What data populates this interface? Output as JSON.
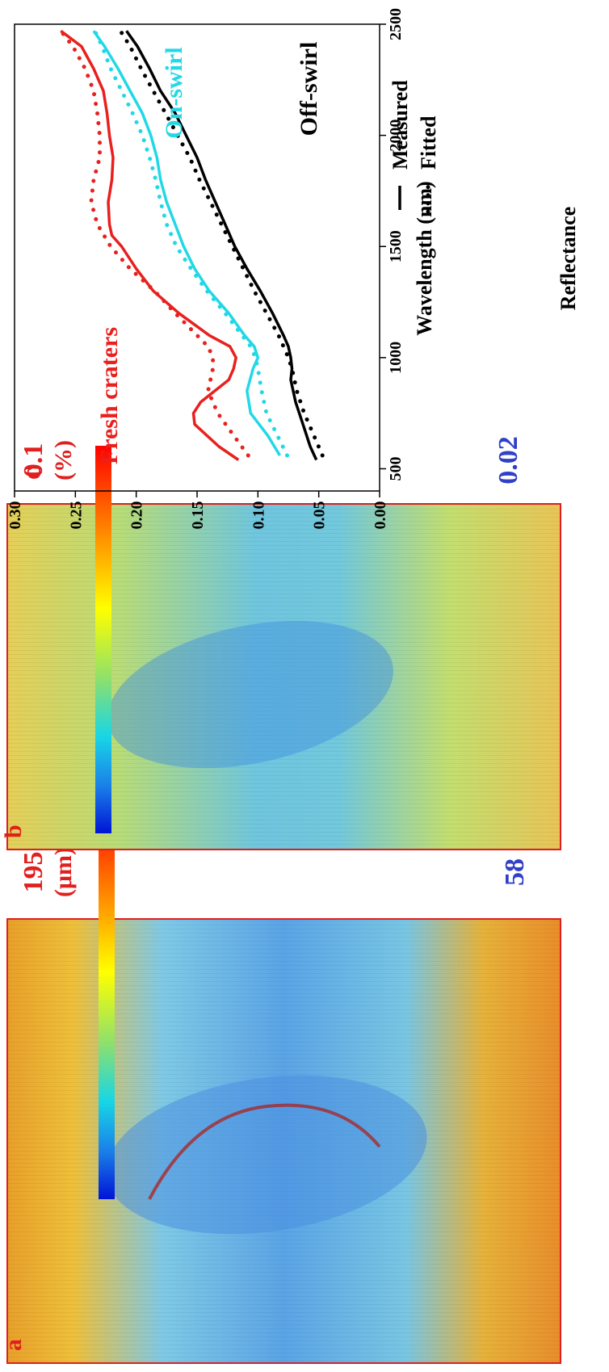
{
  "panels": {
    "a": {
      "letter": "a",
      "colorbar_max": "195",
      "colorbar_unit": "(μm)",
      "colorbar_min": "58",
      "max_color": "#d81e1e",
      "min_color": "#2f3fd0"
    },
    "b": {
      "letter": "b",
      "colorbar_max": "0.1",
      "colorbar_unit": "(%)",
      "colorbar_min": "0.02",
      "max_color": "#d81e1e",
      "min_color": "#2f3fd0"
    }
  },
  "chart_data": {
    "type": "line",
    "panel_letter": "c",
    "xlabel": "Wavelength (nm)",
    "ylabel": "Reflectance",
    "xlim": [
      400,
      2500
    ],
    "ylim": [
      0.0,
      0.3
    ],
    "x_ticks": [
      "500",
      "1000",
      "1500",
      "2000",
      "2500"
    ],
    "y_ticks": [
      "0.00",
      "0.05",
      "0.10",
      "0.15",
      "0.20",
      "0.25",
      "0.30"
    ],
    "legend": {
      "placement": "bottom-right",
      "entries": [
        {
          "label": "Measured",
          "style": "solid"
        },
        {
          "label": "Fitted",
          "style": "dotted"
        }
      ]
    },
    "series": [
      {
        "name": "Fresh craters",
        "color": "#e8201e",
        "measured": {
          "x": [
            540,
            600,
            700,
            750,
            800,
            900,
            950,
            1000,
            1050,
            1100,
            1200,
            1300,
            1400,
            1500,
            1550,
            1600,
            1700,
            1800,
            1900,
            2000,
            2100,
            2200,
            2300,
            2400,
            2470
          ],
          "y": [
            0.116,
            0.132,
            0.152,
            0.153,
            0.147,
            0.124,
            0.12,
            0.118,
            0.123,
            0.14,
            0.165,
            0.186,
            0.2,
            0.212,
            0.22,
            0.222,
            0.223,
            0.22,
            0.219,
            0.222,
            0.224,
            0.227,
            0.235,
            0.245,
            0.262
          ]
        },
        "fitted": {
          "x": [
            560,
            650,
            750,
            850,
            950,
            1000,
            1050,
            1100,
            1200,
            1300,
            1400,
            1500,
            1600,
            1700,
            1800,
            1900,
            2000,
            2100,
            2200,
            2300,
            2400,
            2470
          ],
          "y": [
            0.108,
            0.12,
            0.133,
            0.141,
            0.137,
            0.137,
            0.141,
            0.15,
            0.168,
            0.185,
            0.205,
            0.221,
            0.232,
            0.237,
            0.235,
            0.23,
            0.23,
            0.232,
            0.235,
            0.242,
            0.252,
            0.262
          ]
        }
      },
      {
        "name": "On-swirl",
        "color": "#22d8e6",
        "measured": {
          "x": [
            560,
            650,
            750,
            850,
            950,
            1000,
            1050,
            1100,
            1200,
            1300,
            1400,
            1500,
            1600,
            1700,
            1800,
            1900,
            2000,
            2100,
            2200,
            2300,
            2400,
            2470
          ],
          "y": [
            0.082,
            0.092,
            0.106,
            0.109,
            0.104,
            0.1,
            0.103,
            0.111,
            0.124,
            0.14,
            0.152,
            0.161,
            0.168,
            0.175,
            0.18,
            0.183,
            0.188,
            0.195,
            0.205,
            0.215,
            0.226,
            0.235
          ]
        },
        "fitted": {
          "x": [
            560,
            650,
            750,
            850,
            950,
            1000,
            1050,
            1100,
            1200,
            1300,
            1400,
            1500,
            1600,
            1700,
            1800,
            1900,
            2000,
            2100,
            2200,
            2300,
            2400,
            2470
          ],
          "y": [
            0.076,
            0.084,
            0.093,
            0.097,
            0.1,
            0.102,
            0.106,
            0.113,
            0.127,
            0.142,
            0.155,
            0.167,
            0.175,
            0.18,
            0.184,
            0.189,
            0.195,
            0.203,
            0.212,
            0.221,
            0.228,
            0.234
          ]
        }
      },
      {
        "name": "Off-swirl",
        "color": "#000000",
        "measured": {
          "x": [
            540,
            600,
            700,
            800,
            900,
            950,
            1000,
            1050,
            1100,
            1200,
            1300,
            1400,
            1500,
            1600,
            1700,
            1800,
            1900,
            2000,
            2100,
            2200,
            2300,
            2400,
            2470
          ],
          "y": [
            0.052,
            0.057,
            0.063,
            0.069,
            0.073,
            0.072,
            0.073,
            0.075,
            0.079,
            0.088,
            0.098,
            0.109,
            0.119,
            0.127,
            0.135,
            0.143,
            0.15,
            0.159,
            0.168,
            0.18,
            0.189,
            0.199,
            0.208
          ]
        },
        "fitted": {
          "x": [
            560,
            650,
            750,
            850,
            950,
            1000,
            1050,
            1100,
            1200,
            1300,
            1400,
            1500,
            1600,
            1700,
            1800,
            1900,
            2000,
            2100,
            2200,
            2300,
            2400,
            2470
          ],
          "y": [
            0.047,
            0.054,
            0.062,
            0.068,
            0.072,
            0.075,
            0.079,
            0.083,
            0.093,
            0.103,
            0.112,
            0.121,
            0.13,
            0.139,
            0.148,
            0.156,
            0.166,
            0.176,
            0.186,
            0.196,
            0.205,
            0.213
          ]
        }
      }
    ]
  }
}
